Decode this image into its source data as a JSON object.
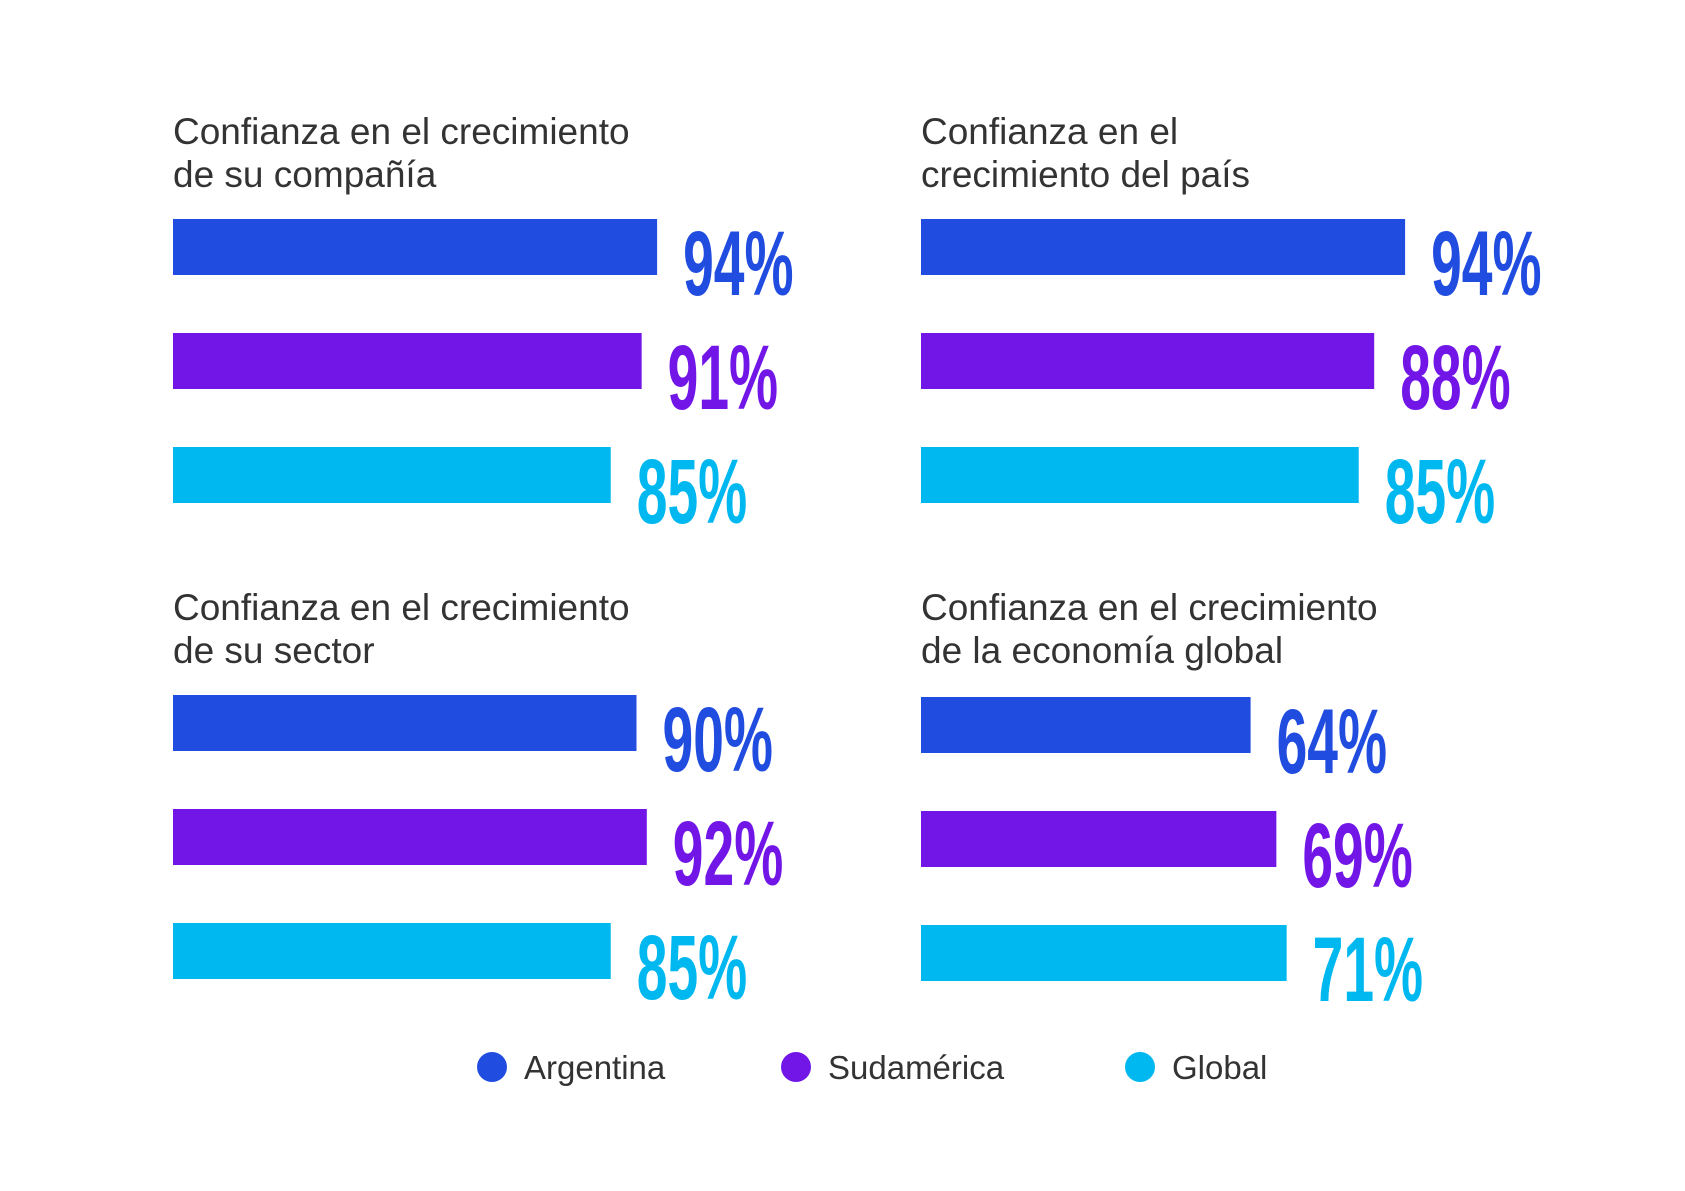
{
  "chart_data": {
    "type": "bar",
    "orientation": "horizontal",
    "unit": "%",
    "legend_position": "bottom",
    "grid": false,
    "series": [
      {
        "name": "Argentina",
        "color": "#214ce0"
      },
      {
        "name": "Sudamérica",
        "color": "#7216e8"
      },
      {
        "name": "Global",
        "color": "#00b8f0"
      }
    ],
    "panels": [
      {
        "title": [
          "Confianza en el crecimiento",
          "de su compañía"
        ],
        "values": [
          94,
          91,
          85
        ],
        "labels": [
          "94%",
          "91%",
          "85%"
        ]
      },
      {
        "title": [
          "Confianza en el",
          "crecimiento del país"
        ],
        "values": [
          94,
          88,
          85
        ],
        "labels": [
          "94%",
          "88%",
          "85%"
        ]
      },
      {
        "title": [
          "Confianza en el crecimiento",
          "de su sector"
        ],
        "values": [
          90,
          92,
          85
        ],
        "labels": [
          "90%",
          "92%",
          "85%"
        ]
      },
      {
        "title": [
          "Confianza en el crecimiento",
          "de la economía global"
        ],
        "values": [
          64,
          69,
          71
        ],
        "labels": [
          "64%",
          "69%",
          "71%"
        ]
      }
    ],
    "xlim": [
      0,
      100
    ]
  }
}
